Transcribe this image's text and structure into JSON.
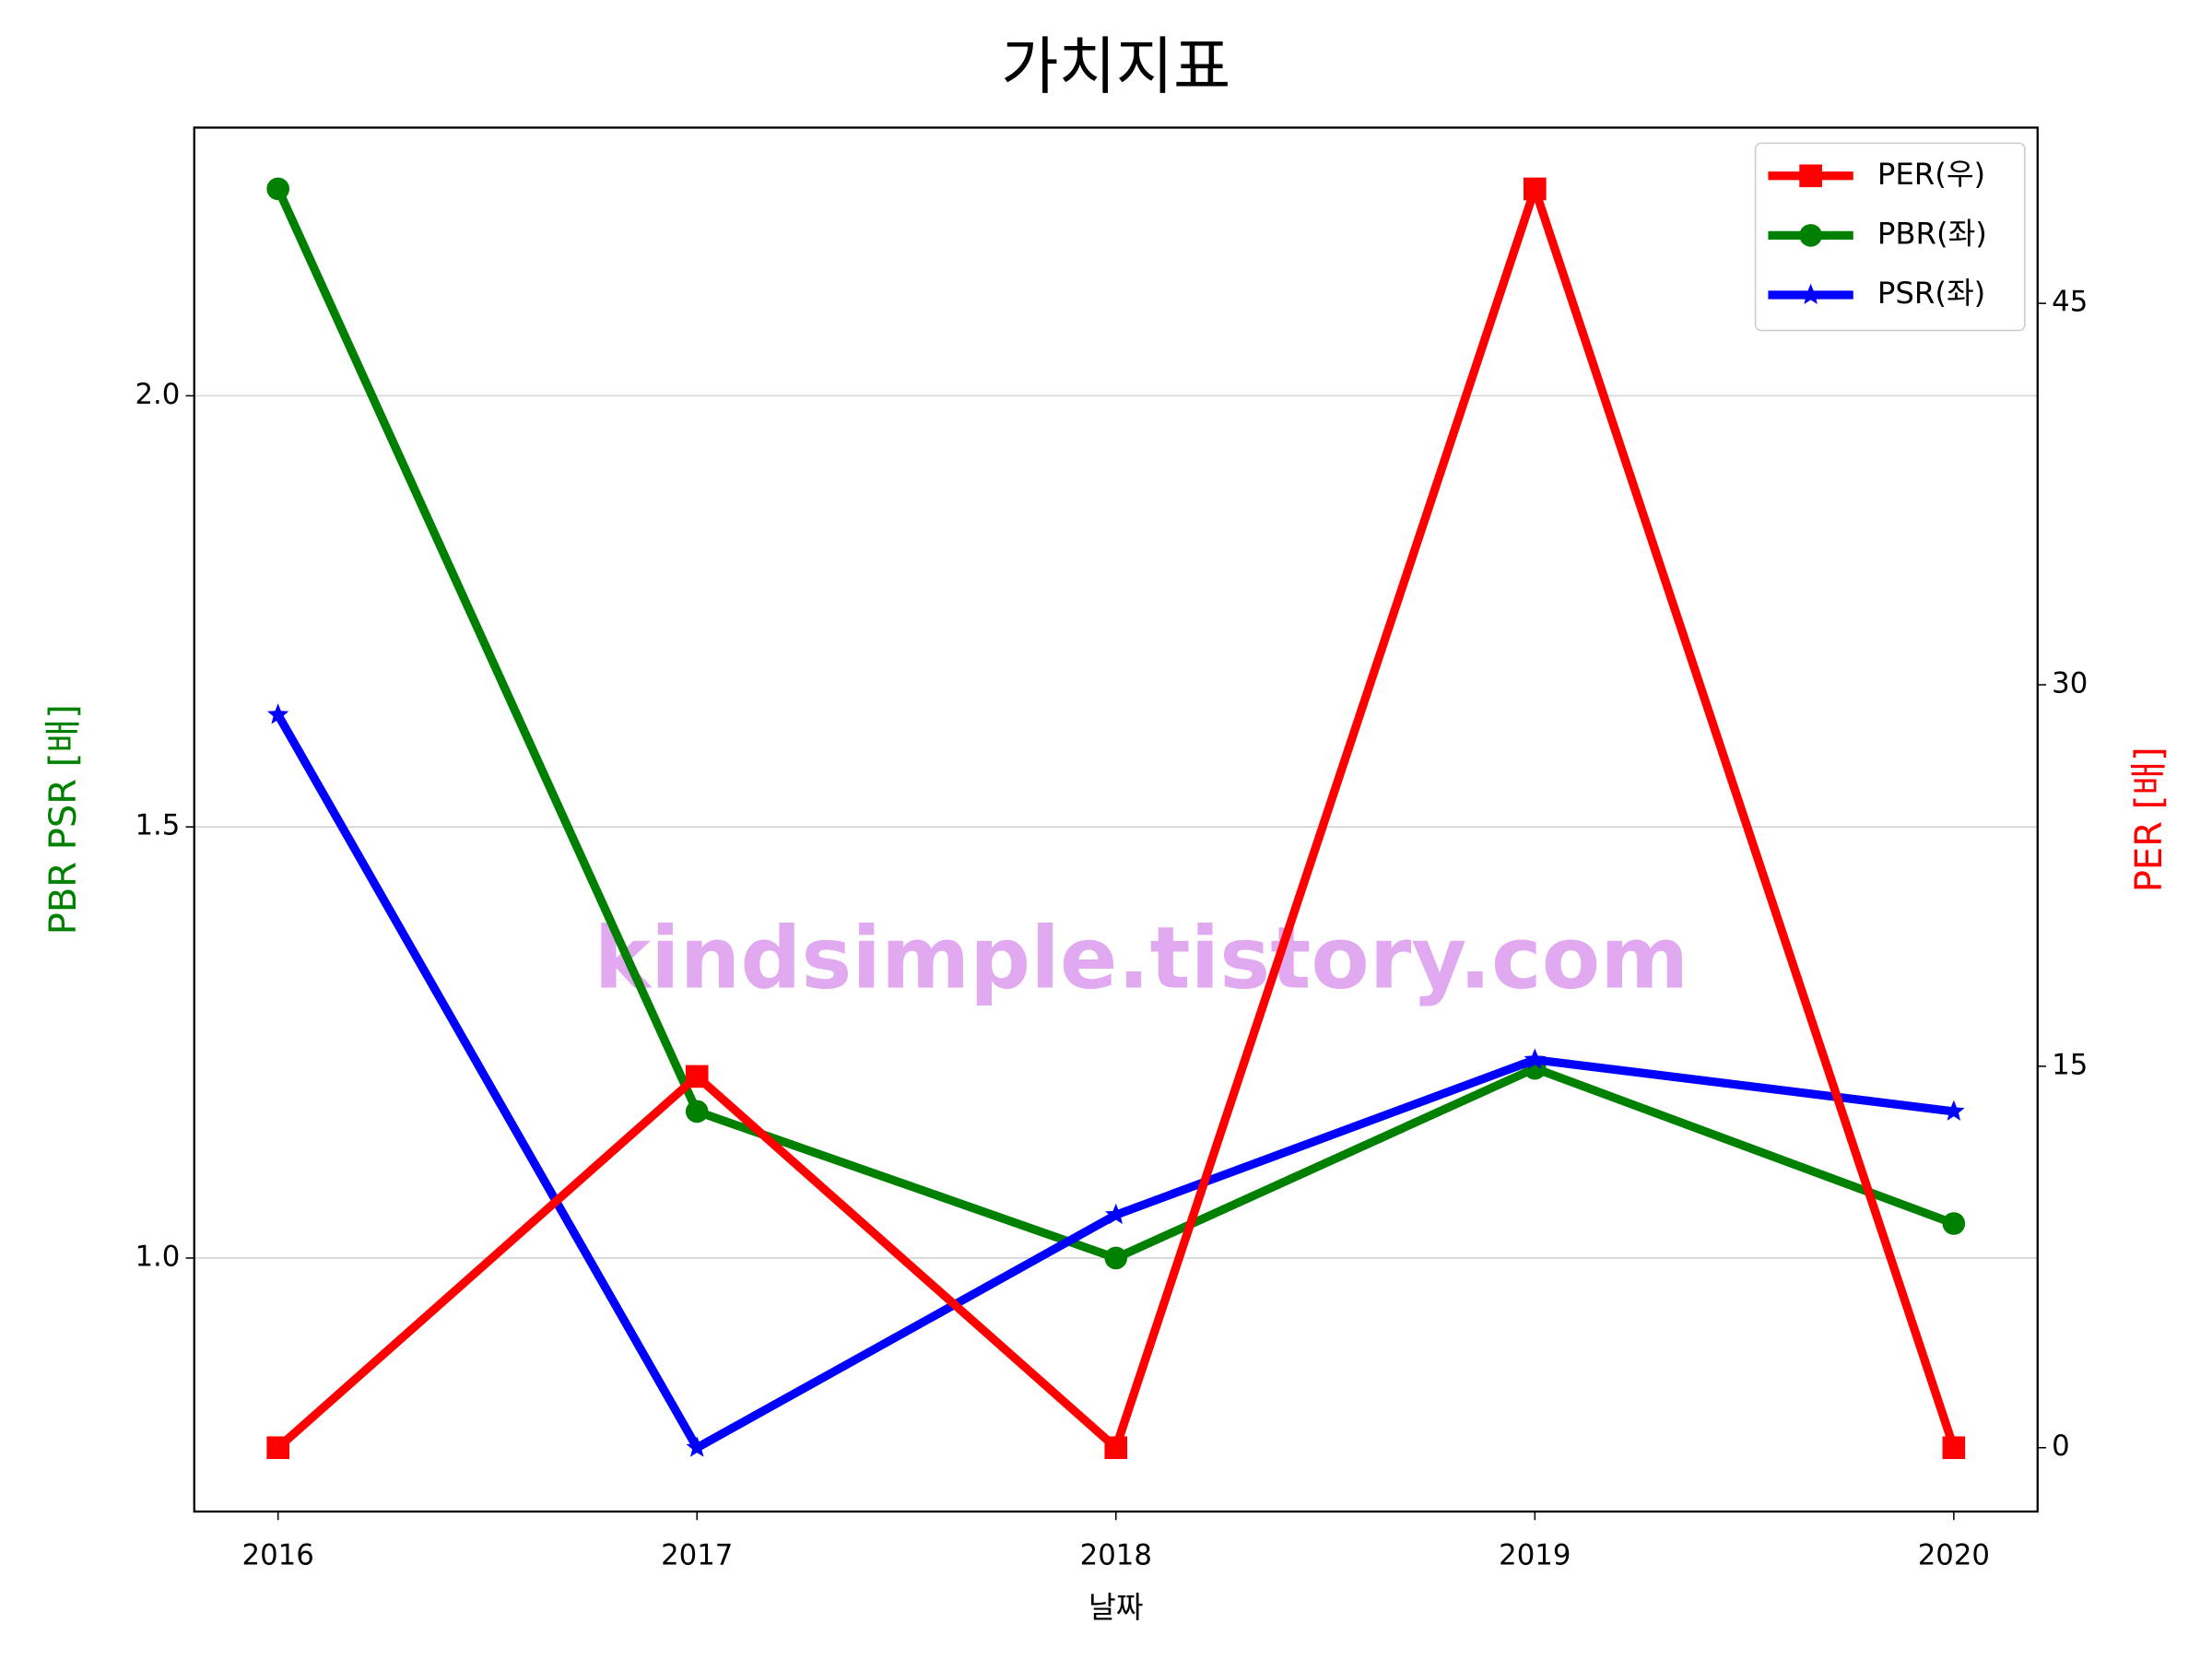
{
  "chart_data": {
    "type": "line",
    "title": "가치지표",
    "xlabel": "날짜",
    "ylabel": "PBR PSR [배]",
    "y2label": "PER [배]",
    "annotation": "kindsimple.tistory.com",
    "x": [
      2016,
      2017,
      2018,
      2019,
      2020
    ],
    "xlim": [
      2015.8,
      2020.2
    ],
    "xticks": [
      2016,
      2017,
      2018,
      2019,
      2020
    ],
    "ylim": [
      0.706,
      2.311
    ],
    "yticks": [
      {
        "value": 1,
        "label": "1.0"
      },
      {
        "value": 1.5,
        "label": "1.5"
      },
      {
        "value": 2,
        "label": "2.0"
      }
    ],
    "y2lim": [
      -2.51,
      51.91
    ],
    "y2ticks": [
      0,
      15,
      30,
      45
    ],
    "grid": true,
    "legend": "upper right",
    "series": [
      {
        "name": "PER(우)",
        "color": "#ff0000",
        "marker": "square",
        "axis": "y2",
        "values": [
          0,
          14.6,
          0,
          49.5,
          0
        ]
      },
      {
        "name": "PBR(좌)",
        "color": "#008000",
        "marker": "circle",
        "values": [
          2.24,
          1.17,
          1.0,
          1.22,
          1.04
        ]
      },
      {
        "name": "PSR(좌)",
        "color": "#0000ff",
        "marker": "star",
        "values": [
          1.63,
          0.78,
          1.05,
          1.23,
          1.17
        ]
      }
    ]
  }
}
